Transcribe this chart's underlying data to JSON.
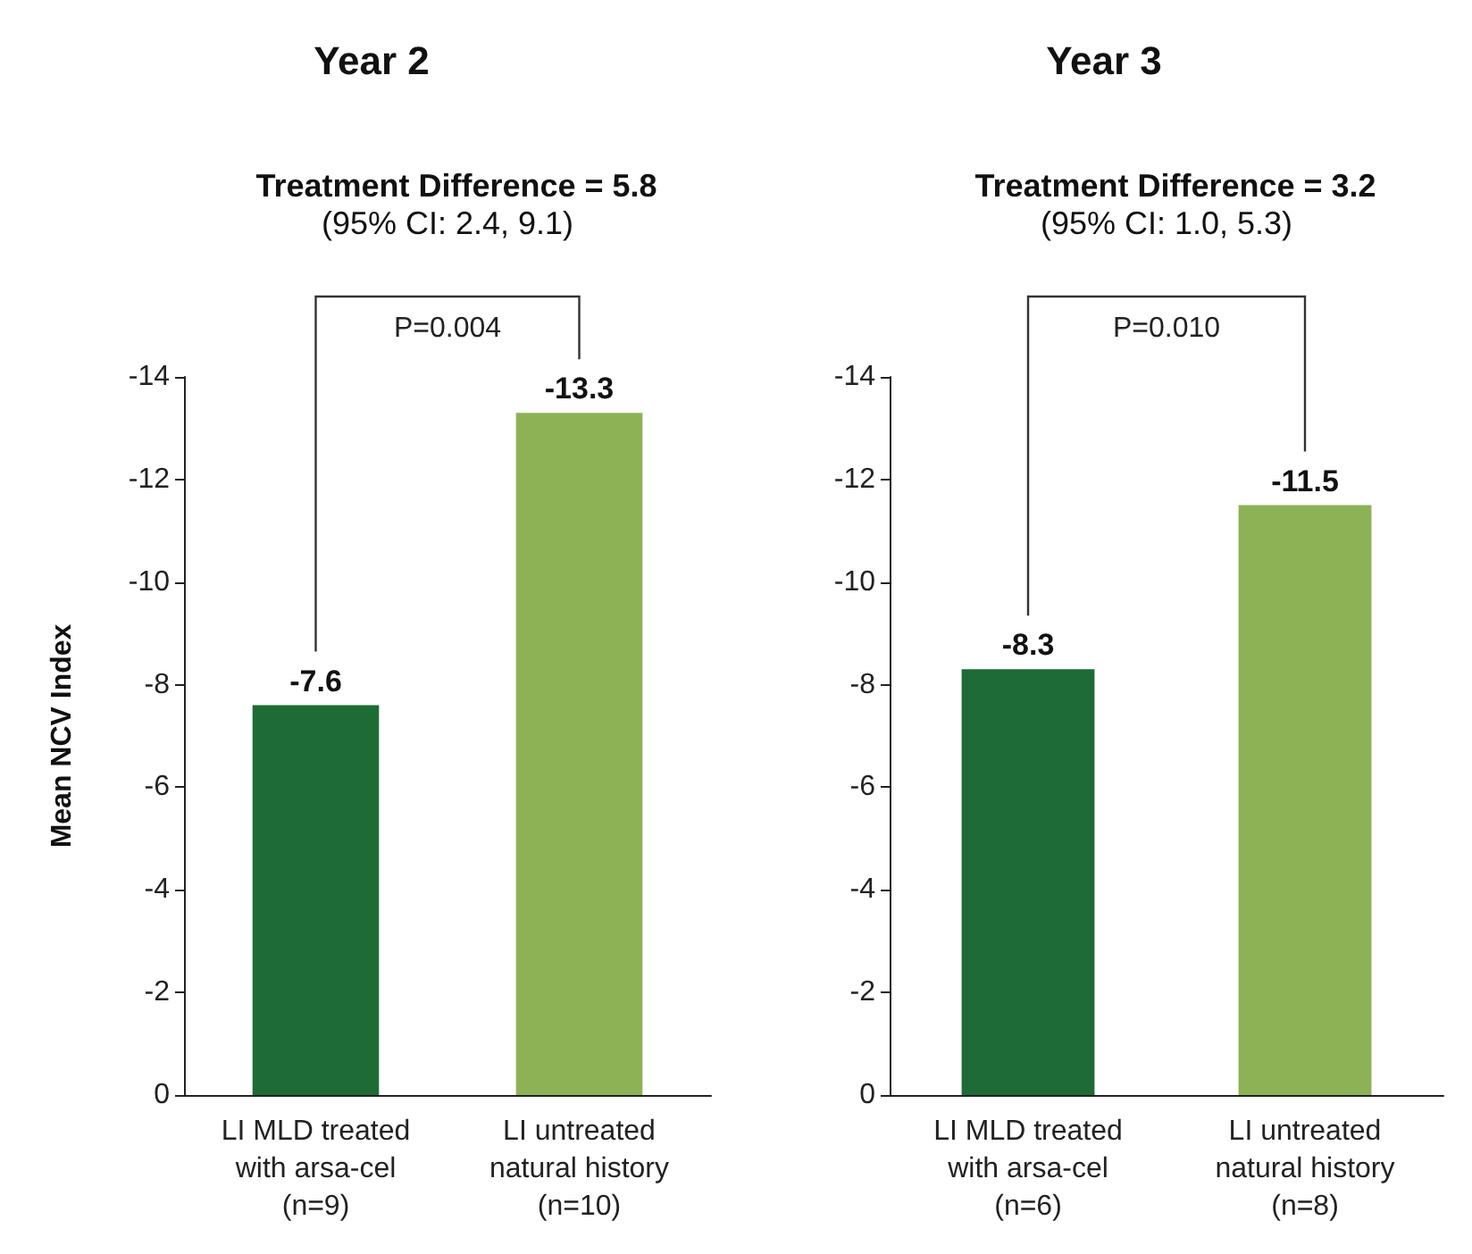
{
  "chart_data": [
    {
      "type": "bar",
      "title": "Year 2",
      "subtitle": "Treatment Difference = 5.8",
      "annotations": [
        "(95% CI: 2.4, 9.1)",
        "P=0.004"
      ],
      "ylabel": "Mean NCV Index",
      "categories": [
        "LI MLD treated\nwith arsa-cel\n(n=9)",
        "LI untreated\nnatural history\n(n=10)"
      ],
      "values": [
        -7.6,
        -13.3
      ],
      "colors": [
        "#1e6b35",
        "#8db255"
      ],
      "ylim": [
        0,
        -14
      ],
      "yticks": [
        0,
        -2,
        -4,
        -6,
        -8,
        -10,
        -12,
        -14
      ],
      "data_labels": true
    },
    {
      "type": "bar",
      "title": "Year 3",
      "subtitle": "Treatment Difference = 3.2",
      "annotations": [
        "(95% CI: 1.0, 5.3)",
        "P=0.010"
      ],
      "categories": [
        "LI MLD treated\nwith arsa-cel\n(n=6)",
        "LI untreated\nnatural history\n(n=8)"
      ],
      "values": [
        -8.3,
        -11.5
      ],
      "colors": [
        "#1e6b35",
        "#8db255"
      ],
      "ylim": [
        0,
        -14
      ],
      "yticks": [
        0,
        -2,
        -4,
        -6,
        -8,
        -10,
        -12,
        -14
      ],
      "data_labels": true
    }
  ]
}
